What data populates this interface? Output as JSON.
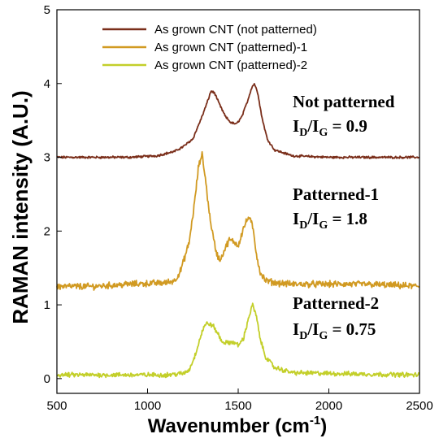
{
  "chart_data": {
    "type": "line",
    "title": "",
    "xlabel": "Wavenumber (cm",
    "xlabel_sup": "-1",
    "xlabel_close": ")",
    "ylabel": "RAMAN intensity (A.U.)",
    "xlim": [
      500,
      2500
    ],
    "ylim": [
      -0.2,
      5
    ],
    "xticks": [
      500,
      1000,
      1500,
      2000,
      2500
    ],
    "yticks": [
      0,
      1,
      2,
      3,
      4,
      5
    ],
    "grid": false,
    "legend_position": "top-center",
    "series": [
      {
        "name": "As grown CNT (not patterned)",
        "color": "#7a2e1a",
        "noise": 0.012,
        "x": [
          500,
          700,
          900,
          1050,
          1150,
          1200,
          1250,
          1300,
          1330,
          1350,
          1370,
          1400,
          1430,
          1460,
          1490,
          1520,
          1550,
          1575,
          1590,
          1610,
          1630,
          1660,
          1700,
          1800,
          2000,
          2200,
          2500
        ],
        "y": [
          3.0,
          3.0,
          3.0,
          3.02,
          3.08,
          3.15,
          3.25,
          3.55,
          3.75,
          3.9,
          3.87,
          3.7,
          3.55,
          3.47,
          3.45,
          3.55,
          3.75,
          3.95,
          4.0,
          3.85,
          3.55,
          3.25,
          3.1,
          3.02,
          3.0,
          3.0,
          3.0
        ]
      },
      {
        "name": "As grown CNT (patterned)-1",
        "color": "#d19a22",
        "noise": 0.035,
        "x": [
          500,
          700,
          900,
          1100,
          1150,
          1180,
          1200,
          1230,
          1260,
          1280,
          1300,
          1320,
          1340,
          1360,
          1380,
          1400,
          1420,
          1450,
          1480,
          1500,
          1530,
          1560,
          1580,
          1600,
          1620,
          1650,
          1700,
          1800,
          2000,
          2200,
          2500
        ],
        "y": [
          1.25,
          1.25,
          1.28,
          1.3,
          1.33,
          1.45,
          1.6,
          1.85,
          2.4,
          2.85,
          3.05,
          2.7,
          2.25,
          1.95,
          1.7,
          1.6,
          1.72,
          1.88,
          1.85,
          1.8,
          2.05,
          2.2,
          2.05,
          1.7,
          1.45,
          1.33,
          1.3,
          1.28,
          1.28,
          1.28,
          1.25
        ]
      },
      {
        "name": "As grown CNT (patterned)-2",
        "color": "#c3cf2a",
        "noise": 0.025,
        "x": [
          500,
          700,
          900,
          1100,
          1200,
          1230,
          1260,
          1290,
          1310,
          1330,
          1360,
          1390,
          1410,
          1440,
          1470,
          1500,
          1530,
          1560,
          1580,
          1600,
          1620,
          1650,
          1700,
          1800,
          2000,
          2200,
          2500
        ],
        "y": [
          0.05,
          0.05,
          0.05,
          0.05,
          0.07,
          0.12,
          0.3,
          0.55,
          0.7,
          0.75,
          0.72,
          0.6,
          0.5,
          0.48,
          0.5,
          0.45,
          0.55,
          0.85,
          1.0,
          0.85,
          0.55,
          0.3,
          0.15,
          0.08,
          0.07,
          0.06,
          0.05
        ]
      }
    ],
    "annotations": [
      {
        "title": "Not patterned",
        "ratio_main": "I",
        "sub_d": "D",
        "slash": "/I",
        "sub_g": "G",
        "value": " = 0.9"
      },
      {
        "title": "Patterned-1",
        "ratio_main": "I",
        "sub_d": "D",
        "slash": "/I",
        "sub_g": "G",
        "value": " = 1.8"
      },
      {
        "title": "Patterned-2",
        "ratio_main": "I",
        "sub_d": "D",
        "slash": "/I",
        "sub_g": "G",
        "value": " = 0.75"
      }
    ]
  }
}
